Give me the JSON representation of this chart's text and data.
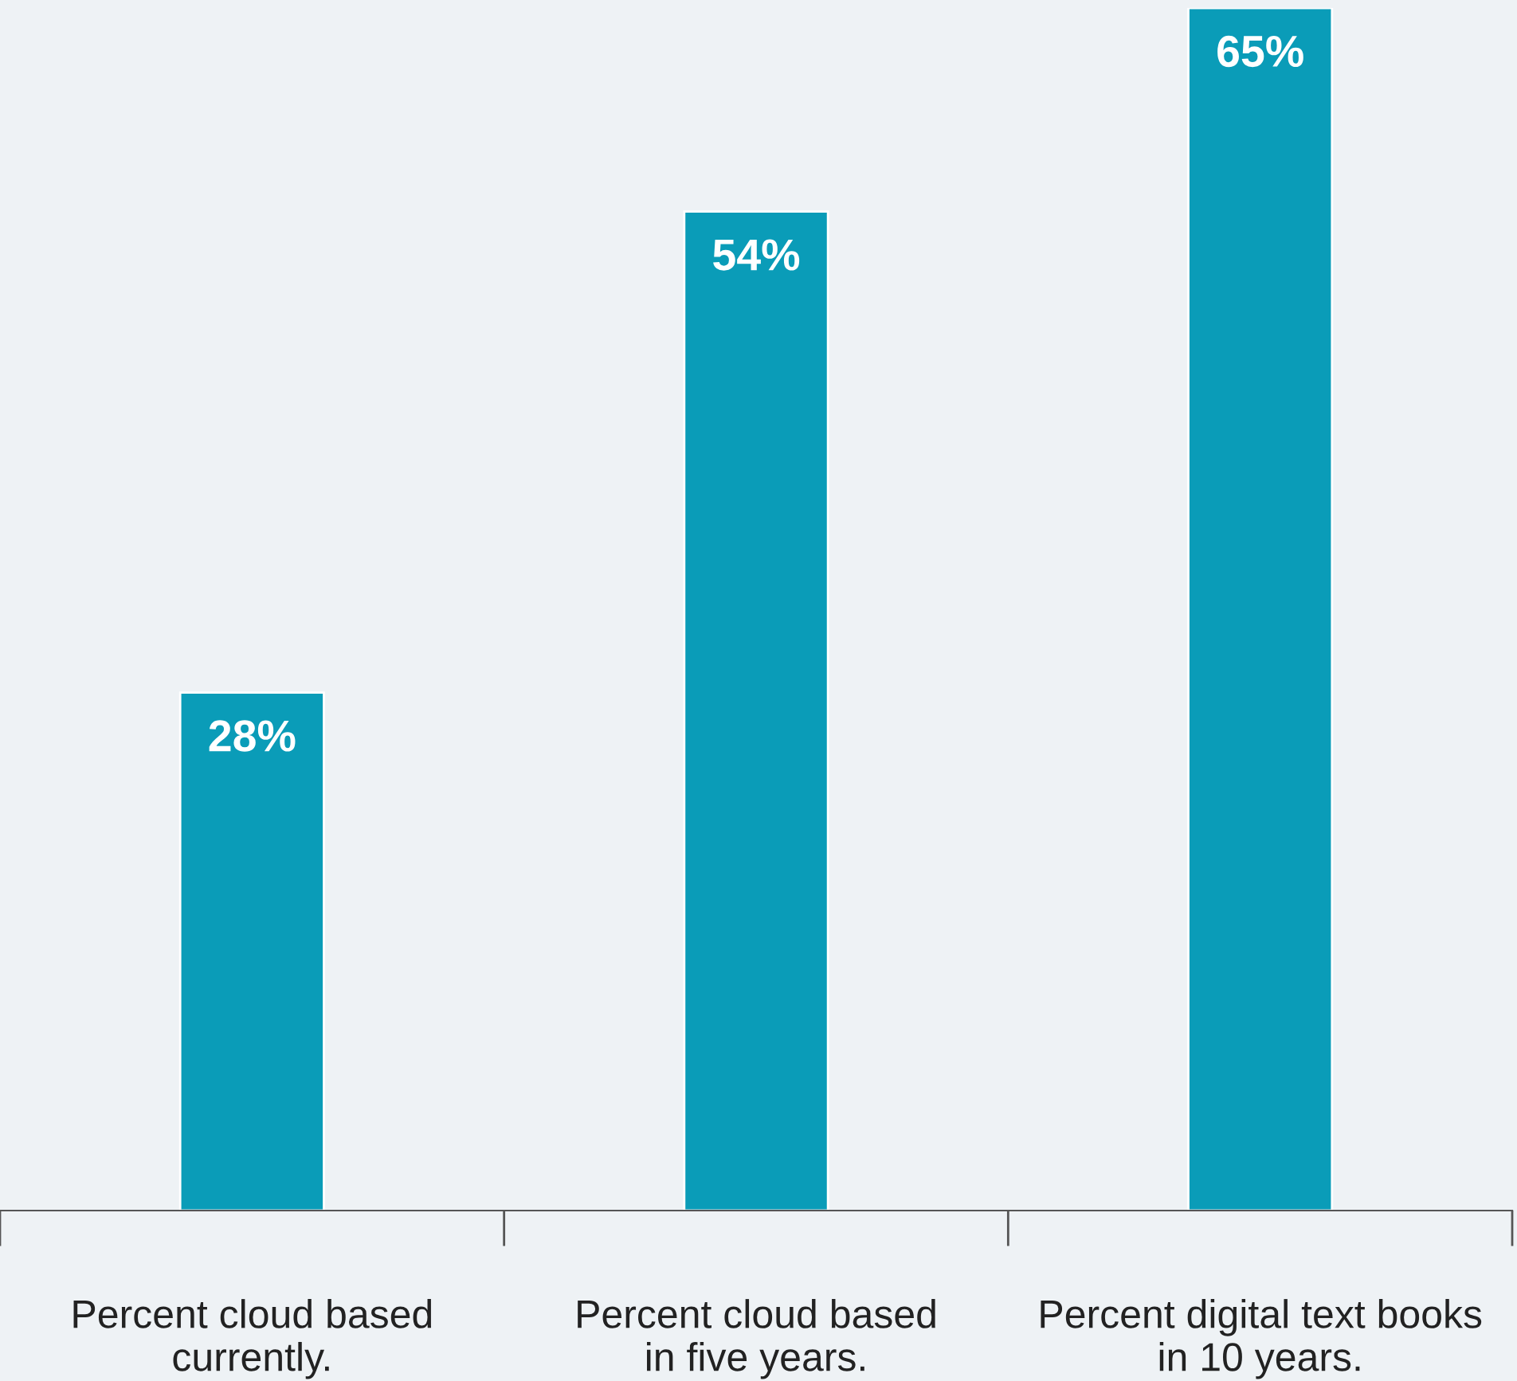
{
  "chart_data": {
    "type": "bar",
    "categories": [
      "Percent cloud based\ncurrently.",
      "Percent cloud based\nin five years.",
      "Percent digital text books\nin 10 years."
    ],
    "values": [
      28,
      54,
      65
    ],
    "color": "#0a9cb8",
    "value_labels": [
      "28%",
      "54%",
      "65%"
    ],
    "grid": false,
    "legend": false
  }
}
